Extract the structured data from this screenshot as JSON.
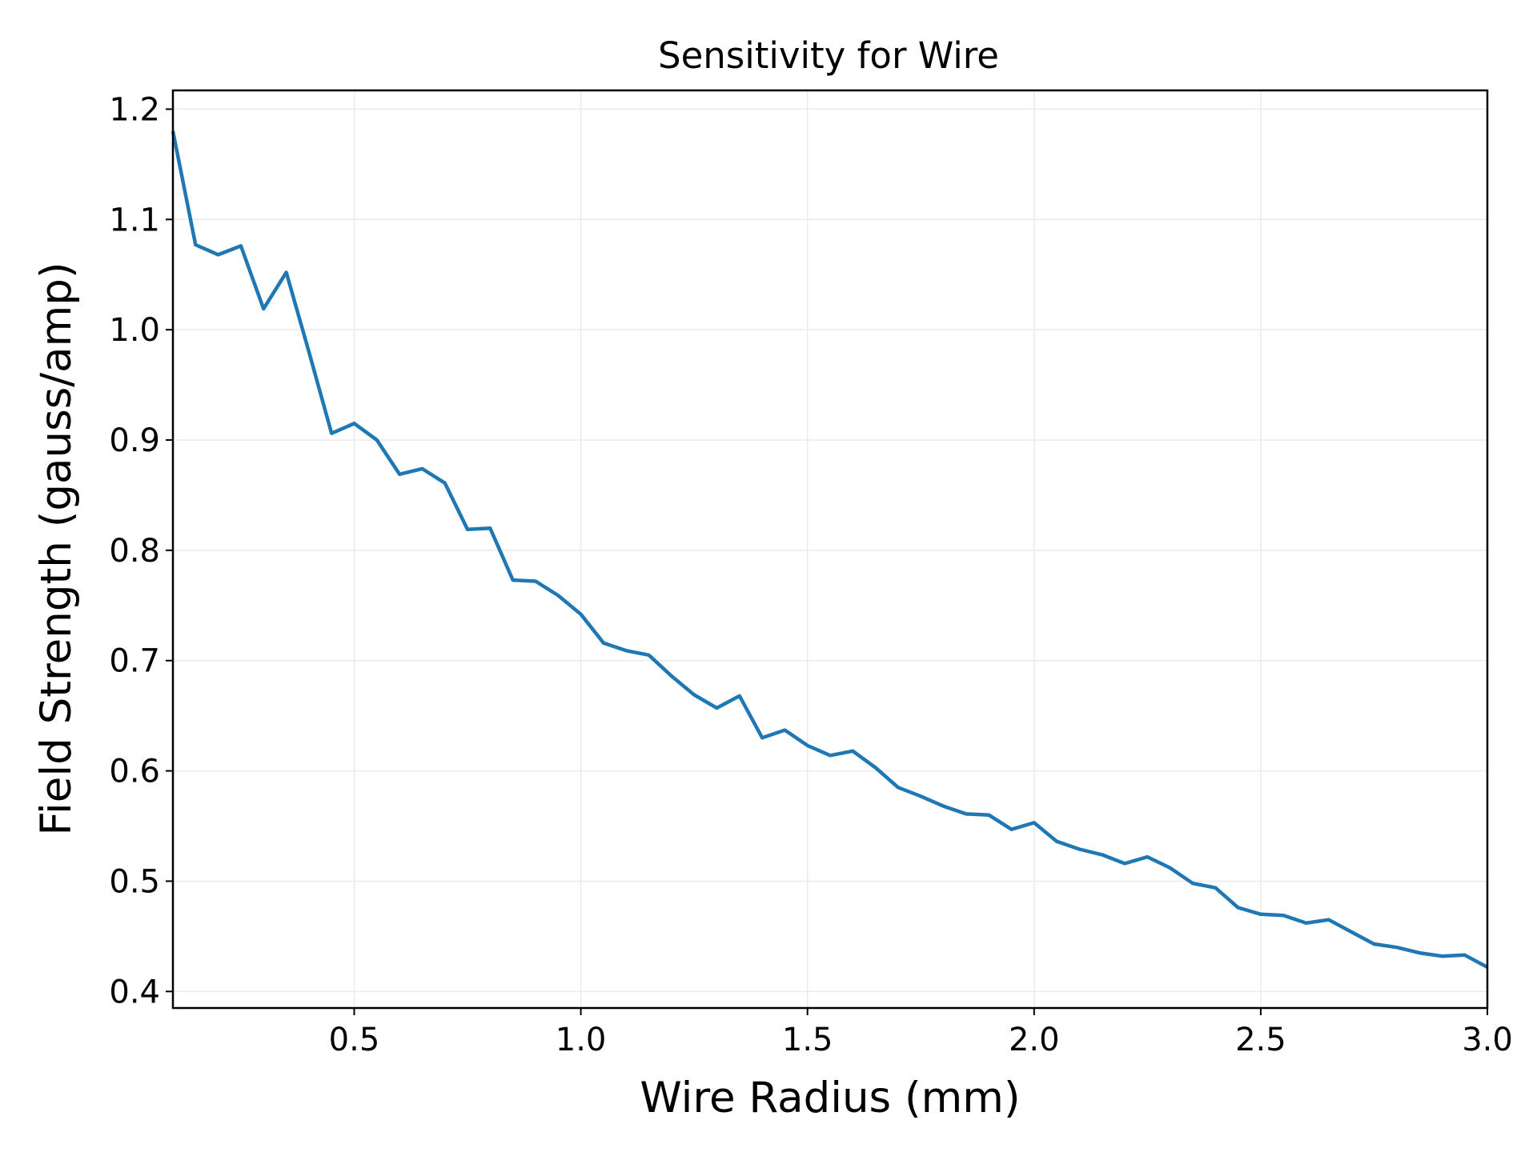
{
  "chart_data": {
    "type": "line",
    "title": "Sensitivity for Wire",
    "xlabel": "Wire Radius (mm)",
    "ylabel": "Field Strength (gauss/amp)",
    "xlim": [
      0.1,
      3.0
    ],
    "ylim": [
      0.385,
      1.217
    ],
    "xticks": [
      "0.5",
      "1.0",
      "1.5",
      "2.0",
      "2.5",
      "3.0"
    ],
    "yticks": [
      "0.4",
      "0.5",
      "0.6",
      "0.7",
      "0.8",
      "0.9",
      "1.0",
      "1.1",
      "1.2"
    ],
    "grid": true,
    "series": [
      {
        "color": "#1f77b4",
        "x": [
          0.1,
          0.15,
          0.2,
          0.25,
          0.3,
          0.35,
          0.4,
          0.45,
          0.5,
          0.55,
          0.6,
          0.65,
          0.7,
          0.75,
          0.8,
          0.85,
          0.9,
          0.95,
          1.0,
          1.05,
          1.1,
          1.15,
          1.2,
          1.25,
          1.3,
          1.35,
          1.4,
          1.45,
          1.5,
          1.55,
          1.6,
          1.65,
          1.7,
          1.75,
          1.8,
          1.85,
          1.9,
          1.95,
          2.0,
          2.05,
          2.1,
          2.15,
          2.2,
          2.25,
          2.3,
          2.35,
          2.4,
          2.45,
          2.5,
          2.55,
          2.6,
          2.65,
          2.7,
          2.75,
          2.8,
          2.85,
          2.9,
          2.95,
          3.0
        ],
        "y": [
          1.18,
          1.077,
          1.068,
          1.076,
          1.019,
          1.052,
          0.98,
          0.906,
          0.915,
          0.9,
          0.869,
          0.874,
          0.861,
          0.819,
          0.82,
          0.773,
          0.772,
          0.759,
          0.742,
          0.716,
          0.709,
          0.705,
          0.686,
          0.669,
          0.657,
          0.668,
          0.63,
          0.637,
          0.623,
          0.614,
          0.618,
          0.603,
          0.585,
          0.577,
          0.568,
          0.561,
          0.56,
          0.547,
          0.553,
          0.536,
          0.529,
          0.524,
          0.516,
          0.522,
          0.512,
          0.498,
          0.494,
          0.476,
          0.47,
          0.469,
          0.462,
          0.465,
          0.454,
          0.443,
          0.44,
          0.435,
          0.432,
          0.433,
          0.422
        ]
      }
    ]
  }
}
